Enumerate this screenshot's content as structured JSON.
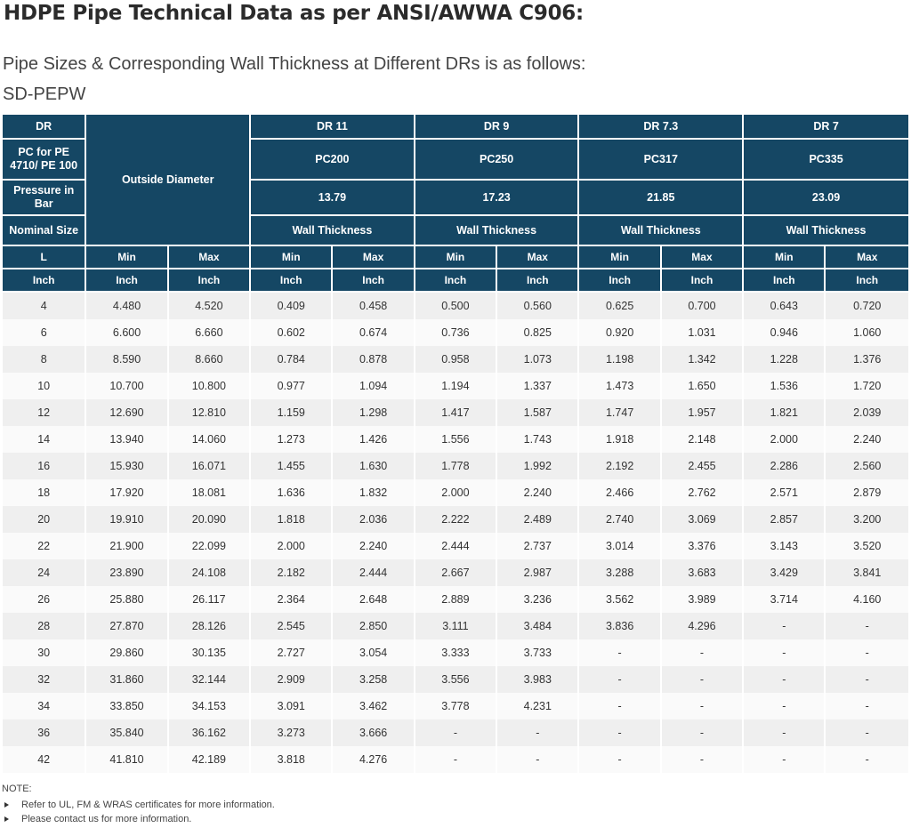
{
  "title": "HDPE Pipe Technical Data as per ANSI/AWWA C906:",
  "subtitle": "Pipe Sizes & Corresponding Wall Thickness at Different DRs is as follows:",
  "product": "SD-PEPW",
  "table": {
    "row_labels": {
      "dr": "DR",
      "pc": "PC for PE 4710/ PE 100",
      "pressure": "Pressure in Bar",
      "nominal": "Nominal Size"
    },
    "od_header": "Outside Diameter",
    "dr_groups": [
      {
        "dr": "DR 11",
        "pc": "PC200",
        "pressure": "13.79",
        "wall": "Wall Thickness"
      },
      {
        "dr": "DR 9",
        "pc": "PC250",
        "pressure": "17.23",
        "wall": "Wall Thickness"
      },
      {
        "dr": "DR 7.3",
        "pc": "PC317",
        "pressure": "21.85",
        "wall": "Wall Thickness"
      },
      {
        "dr": "DR 7",
        "pc": "PC335",
        "pressure": "23.09",
        "wall": "Wall Thickness"
      }
    ],
    "sub_headers": [
      {
        "top": "L",
        "bottom": "Inch"
      },
      {
        "top": "Min",
        "bottom": "Inch"
      },
      {
        "top": "Max",
        "bottom": "Inch"
      },
      {
        "top": "Min",
        "bottom": "Inch"
      },
      {
        "top": "Max",
        "bottom": "Inch"
      },
      {
        "top": "Min",
        "bottom": "Inch"
      },
      {
        "top": "Max",
        "bottom": "Inch"
      },
      {
        "top": "Min",
        "bottom": "Inch"
      },
      {
        "top": "Max",
        "bottom": "Inch"
      },
      {
        "top": "Min",
        "bottom": "Inch"
      },
      {
        "top": "Max",
        "bottom": "Inch"
      }
    ],
    "rows": [
      [
        "4",
        "4.480",
        "4.520",
        "0.409",
        "0.458",
        "0.500",
        "0.560",
        "0.625",
        "0.700",
        "0.643",
        "0.720"
      ],
      [
        "6",
        "6.600",
        "6.660",
        "0.602",
        "0.674",
        "0.736",
        "0.825",
        "0.920",
        "1.031",
        "0.946",
        "1.060"
      ],
      [
        "8",
        "8.590",
        "8.660",
        "0.784",
        "0.878",
        "0.958",
        "1.073",
        "1.198",
        "1.342",
        "1.228",
        "1.376"
      ],
      [
        "10",
        "10.700",
        "10.800",
        "0.977",
        "1.094",
        "1.194",
        "1.337",
        "1.473",
        "1.650",
        "1.536",
        "1.720"
      ],
      [
        "12",
        "12.690",
        "12.810",
        "1.159",
        "1.298",
        "1.417",
        "1.587",
        "1.747",
        "1.957",
        "1.821",
        "2.039"
      ],
      [
        "14",
        "13.940",
        "14.060",
        "1.273",
        "1.426",
        "1.556",
        "1.743",
        "1.918",
        "2.148",
        "2.000",
        "2.240"
      ],
      [
        "16",
        "15.930",
        "16.071",
        "1.455",
        "1.630",
        "1.778",
        "1.992",
        "2.192",
        "2.455",
        "2.286",
        "2.560"
      ],
      [
        "18",
        "17.920",
        "18.081",
        "1.636",
        "1.832",
        "2.000",
        "2.240",
        "2.466",
        "2.762",
        "2.571",
        "2.879"
      ],
      [
        "20",
        "19.910",
        "20.090",
        "1.818",
        "2.036",
        "2.222",
        "2.489",
        "2.740",
        "3.069",
        "2.857",
        "3.200"
      ],
      [
        "22",
        "21.900",
        "22.099",
        "2.000",
        "2.240",
        "2.444",
        "2.737",
        "3.014",
        "3.376",
        "3.143",
        "3.520"
      ],
      [
        "24",
        "23.890",
        "24.108",
        "2.182",
        "2.444",
        "2.667",
        "2.987",
        "3.288",
        "3.683",
        "3.429",
        "3.841"
      ],
      [
        "26",
        "25.880",
        "26.117",
        "2.364",
        "2.648",
        "2.889",
        "3.236",
        "3.562",
        "3.989",
        "3.714",
        "4.160"
      ],
      [
        "28",
        "27.870",
        "28.126",
        "2.545",
        "2.850",
        "3.111",
        "3.484",
        "3.836",
        "4.296",
        "-",
        "-"
      ],
      [
        "30",
        "29.860",
        "30.135",
        "2.727",
        "3.054",
        "3.333",
        "3.733",
        "-",
        "-",
        "-",
        "-"
      ],
      [
        "32",
        "31.860",
        "32.144",
        "2.909",
        "3.258",
        "3.556",
        "3.983",
        "-",
        "-",
        "-",
        "-"
      ],
      [
        "34",
        "33.850",
        "34.153",
        "3.091",
        "3.462",
        "3.778",
        "4.231",
        "-",
        "-",
        "-",
        "-"
      ],
      [
        "36",
        "35.840",
        "36.162",
        "3.273",
        "3.666",
        "-",
        "-",
        "-",
        "-",
        "-",
        "-"
      ],
      [
        "42",
        "41.810",
        "42.189",
        "3.818",
        "4.276",
        "-",
        "-",
        "-",
        "-",
        "-",
        "-"
      ]
    ]
  },
  "note": {
    "label": "NOTE:",
    "items": [
      "Refer to UL, FM & WRAS certificates for more information.",
      "Please contact us for more information."
    ]
  }
}
